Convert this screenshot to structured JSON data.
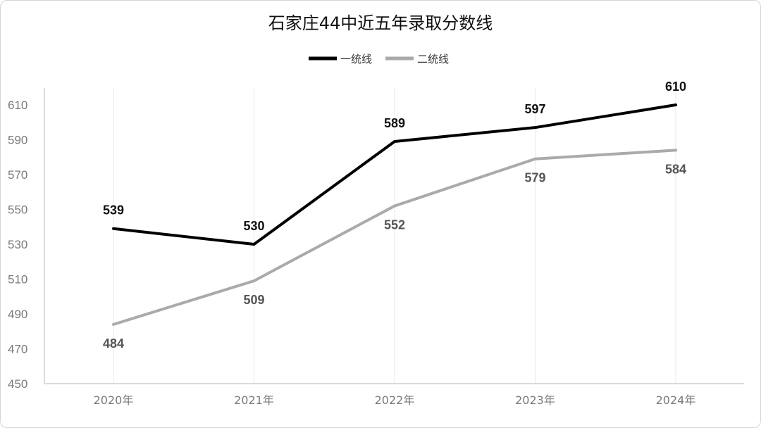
{
  "chart_data": {
    "type": "line",
    "title": "石家庄44中近五年录取分数线",
    "categories": [
      "2020年",
      "2021年",
      "2022年",
      "2023年",
      "2024年"
    ],
    "series": [
      {
        "name": "一统线",
        "values": [
          539,
          530,
          589,
          597,
          610
        ],
        "color": "#000000"
      },
      {
        "name": "二统线",
        "values": [
          484,
          509,
          552,
          579,
          584
        ],
        "color": "#aaaaaa"
      }
    ],
    "yticks": [
      450,
      470,
      490,
      510,
      530,
      550,
      570,
      590,
      610
    ],
    "ylim": [
      450,
      610
    ],
    "xlabel": "",
    "ylabel": "",
    "legend_position": "top-center",
    "grid": "vertical"
  }
}
